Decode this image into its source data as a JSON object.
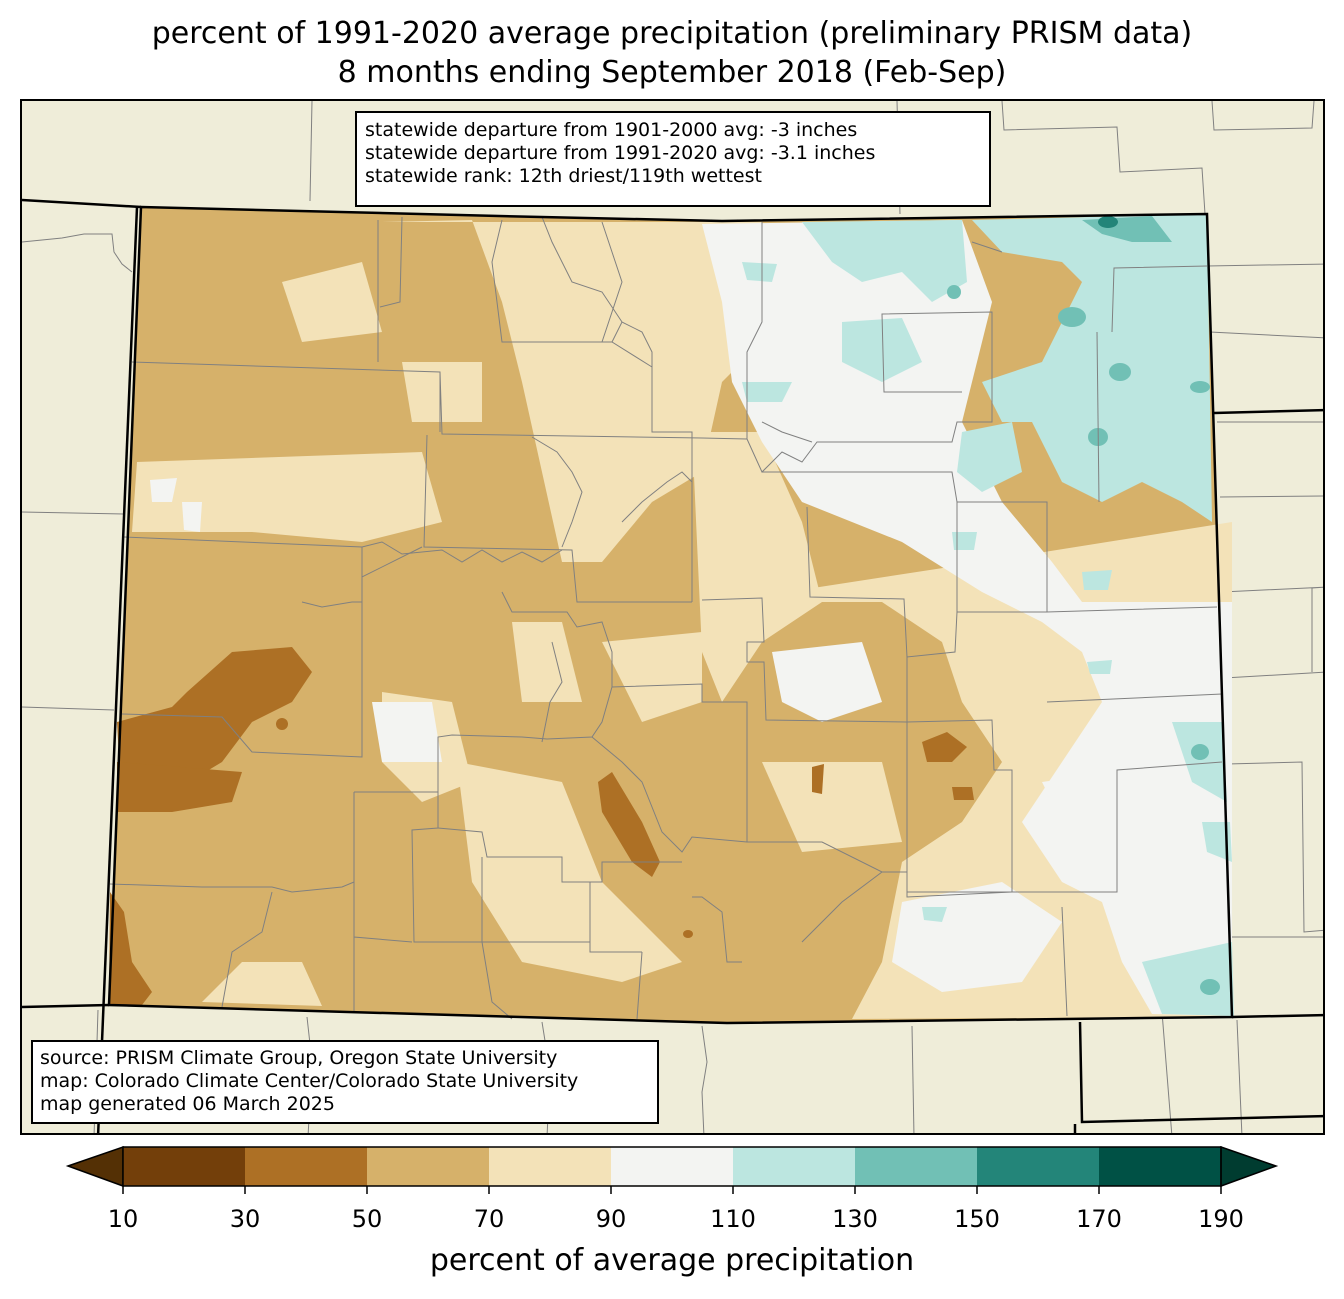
{
  "title": {
    "line1": "percent of 1991-2020 average precipitation (preliminary PRISM data)",
    "line2": "8 months ending September 2018 (Feb-Sep)"
  },
  "stats": {
    "line1": "statewide departure from 1901-2000 avg: -3 inches",
    "line2": "statewide departure from 1991-2020 avg: -3.1 inches",
    "line3": "statewide rank: 12th driest/119th wettest"
  },
  "source": {
    "line1": "source: PRISM Climate Group, Oregon State University",
    "line2": "map: Colorado Climate Center/Colorado State University",
    "line3": "map generated 06 March 2025"
  },
  "colorbar": {
    "label": "percent of average precipitation",
    "ticks": [
      "10",
      "30",
      "50",
      "70",
      "90",
      "110",
      "130",
      "150",
      "170",
      "190"
    ],
    "under_color": "#543005",
    "over_color": "#003c30",
    "bins": [
      {
        "from": 10,
        "to": 30,
        "color": "#733f0a"
      },
      {
        "from": 30,
        "to": 50,
        "color": "#ad7025"
      },
      {
        "from": 50,
        "to": 70,
        "color": "#d6b16a"
      },
      {
        "from": 70,
        "to": 90,
        "color": "#f3e2b8"
      },
      {
        "from": 90,
        "to": 110,
        "color": "#f3f4f2"
      },
      {
        "from": 110,
        "to": 130,
        "color": "#bce6e0"
      },
      {
        "from": 130,
        "to": 150,
        "color": "#71c0b5"
      },
      {
        "from": 150,
        "to": 170,
        "color": "#238579"
      },
      {
        "from": 170,
        "to": 190,
        "color": "#005145"
      }
    ]
  },
  "map": {
    "state": "Colorado",
    "background_color": "#efedd9",
    "boundary_color": "#000000",
    "county_line_color": "#808080"
  }
}
